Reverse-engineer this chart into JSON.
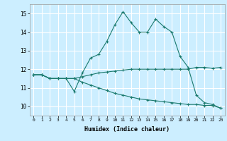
{
  "xlabel": "Humidex (Indice chaleur)",
  "bg_color": "#cceeff",
  "line_color": "#1a7a6e",
  "grid_color": "#ffffff",
  "xlim": [
    -0.5,
    23.5
  ],
  "ylim": [
    9.5,
    15.5
  ],
  "yticks": [
    10,
    11,
    12,
    13,
    14,
    15
  ],
  "xticks": [
    0,
    1,
    2,
    3,
    4,
    5,
    6,
    7,
    8,
    9,
    10,
    11,
    12,
    13,
    14,
    15,
    16,
    17,
    18,
    19,
    20,
    21,
    22,
    23
  ],
  "line1_x": [
    0,
    1,
    2,
    3,
    4,
    5,
    6,
    7,
    8,
    9,
    10,
    11,
    12,
    13,
    14,
    15,
    16,
    17,
    18,
    19,
    20,
    21,
    22,
    23
  ],
  "line1_y": [
    11.7,
    11.7,
    11.5,
    11.5,
    11.5,
    10.8,
    11.8,
    12.6,
    12.8,
    13.5,
    14.4,
    15.1,
    14.5,
    14.0,
    14.0,
    14.7,
    14.3,
    14.0,
    12.7,
    12.1,
    10.6,
    10.2,
    10.1,
    9.9
  ],
  "line2_x": [
    0,
    1,
    2,
    3,
    4,
    5,
    6,
    7,
    8,
    9,
    10,
    11,
    12,
    13,
    14,
    15,
    16,
    17,
    18,
    19,
    20,
    21,
    22,
    23
  ],
  "line2_y": [
    11.7,
    11.7,
    11.5,
    11.5,
    11.5,
    11.5,
    11.6,
    11.7,
    11.8,
    11.85,
    11.9,
    11.95,
    12.0,
    12.0,
    12.0,
    12.0,
    12.0,
    12.0,
    12.0,
    12.0,
    12.1,
    12.1,
    12.05,
    12.1
  ],
  "line3_x": [
    0,
    1,
    2,
    3,
    4,
    5,
    6,
    7,
    8,
    9,
    10,
    11,
    12,
    13,
    14,
    15,
    16,
    17,
    18,
    19,
    20,
    21,
    22,
    23
  ],
  "line3_y": [
    11.7,
    11.7,
    11.5,
    11.5,
    11.5,
    11.5,
    11.3,
    11.15,
    11.0,
    10.85,
    10.7,
    10.6,
    10.5,
    10.4,
    10.35,
    10.3,
    10.25,
    10.2,
    10.15,
    10.1,
    10.1,
    10.05,
    10.05,
    9.9
  ]
}
